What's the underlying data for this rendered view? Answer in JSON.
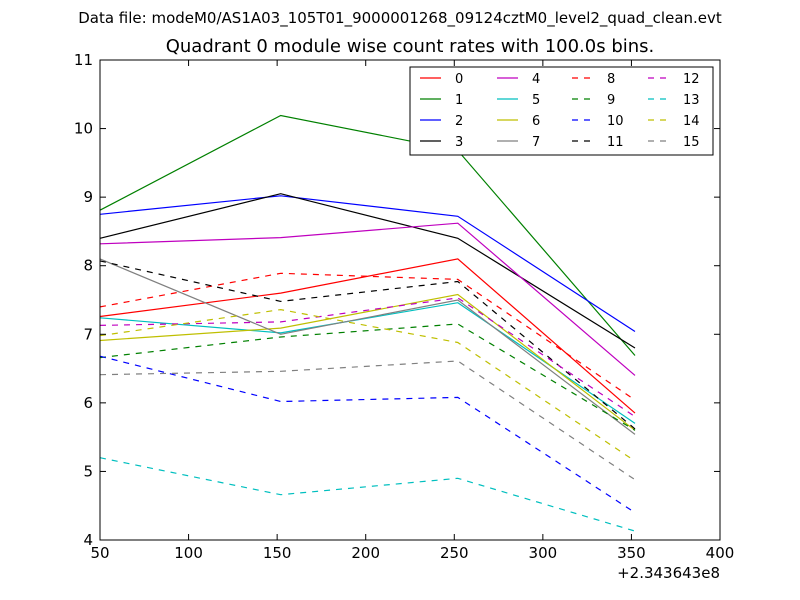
{
  "header": {
    "suptitle": "Data file: modeM0/AS1A03_105T01_9000001268_09124cztM0_level2_quad_clean.evt"
  },
  "chart_data": {
    "type": "line",
    "title": "Quadrant 0 module wise count rates with 100.0s bins.",
    "xlabel": "",
    "ylabel": "",
    "x_offset_label": "+2.343643e8",
    "xlim": [
      50,
      400
    ],
    "ylim": [
      4,
      11
    ],
    "xticks": [
      50,
      100,
      150,
      200,
      250,
      300,
      350,
      400
    ],
    "yticks": [
      4,
      5,
      6,
      7,
      8,
      9,
      10,
      11
    ],
    "grid": false,
    "legend": {
      "placement": "top-right",
      "columns": 4
    },
    "x": [
      50,
      152,
      252,
      352
    ],
    "series": [
      {
        "name": "0",
        "color": "#ff0000",
        "dash": "solid",
        "values": [
          7.26,
          7.6,
          8.1,
          5.85
        ]
      },
      {
        "name": "1",
        "color": "#008000",
        "dash": "solid",
        "values": [
          8.81,
          10.19,
          9.68,
          6.69
        ]
      },
      {
        "name": "2",
        "color": "#0000ff",
        "dash": "solid",
        "values": [
          8.75,
          9.02,
          8.72,
          7.04
        ]
      },
      {
        "name": "3",
        "color": "#000000",
        "dash": "solid",
        "values": [
          8.4,
          9.05,
          8.4,
          6.8
        ]
      },
      {
        "name": "4",
        "color": "#bf00bf",
        "dash": "solid",
        "values": [
          8.32,
          8.41,
          8.62,
          6.4
        ]
      },
      {
        "name": "5",
        "color": "#00bfbf",
        "dash": "solid",
        "values": [
          7.24,
          7.02,
          7.46,
          5.7
        ]
      },
      {
        "name": "6",
        "color": "#bfbf00",
        "dash": "solid",
        "values": [
          6.91,
          7.09,
          7.58,
          5.6
        ]
      },
      {
        "name": "7",
        "color": "#808080",
        "dash": "solid",
        "values": [
          8.1,
          7.0,
          7.5,
          5.54
        ]
      },
      {
        "name": "8",
        "color": "#ff0000",
        "dash": "dashed",
        "values": [
          7.4,
          7.89,
          7.8,
          6.04
        ]
      },
      {
        "name": "9",
        "color": "#008000",
        "dash": "dashed",
        "values": [
          6.66,
          6.96,
          7.15,
          5.6
        ]
      },
      {
        "name": "10",
        "color": "#0000ff",
        "dash": "dashed",
        "values": [
          6.68,
          6.02,
          6.08,
          4.4
        ]
      },
      {
        "name": "11",
        "color": "#000000",
        "dash": "dashed",
        "values": [
          8.07,
          7.48,
          7.77,
          5.62
        ]
      },
      {
        "name": "12",
        "color": "#bf00bf",
        "dash": "dashed",
        "values": [
          7.13,
          7.18,
          7.53,
          5.8
        ]
      },
      {
        "name": "13",
        "color": "#00bfbf",
        "dash": "dashed",
        "values": [
          5.2,
          4.66,
          4.9,
          4.13
        ]
      },
      {
        "name": "14",
        "color": "#bfbf00",
        "dash": "dashed",
        "values": [
          6.98,
          7.36,
          6.88,
          5.15
        ]
      },
      {
        "name": "15",
        "color": "#808080",
        "dash": "dashed",
        "values": [
          6.41,
          6.46,
          6.61,
          4.88
        ]
      }
    ]
  }
}
